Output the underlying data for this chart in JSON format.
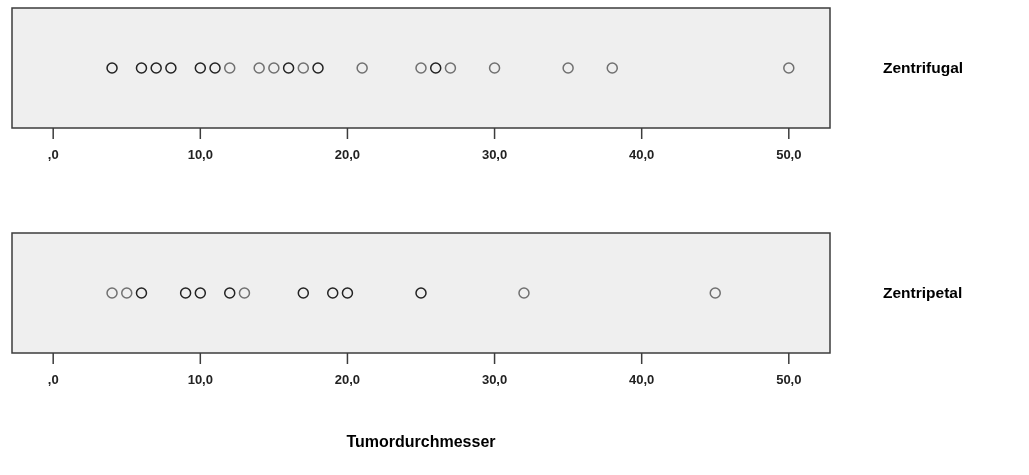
{
  "chart_data": [
    {
      "type": "scatter",
      "orientation": "horizontal",
      "marker": "circle",
      "categories": [
        "Zentrifugal"
      ],
      "series": [
        {
          "color": "#222222",
          "values": [
            4
          ]
        },
        {
          "color": "#222222",
          "values": [
            6
          ]
        },
        {
          "color": "#222222",
          "values": [
            7
          ]
        },
        {
          "color": "#222222",
          "values": [
            8
          ]
        },
        {
          "color": "#222222",
          "values": [
            10
          ]
        },
        {
          "color": "#222222",
          "values": [
            11
          ]
        },
        {
          "color": "#707070",
          "values": [
            12
          ]
        },
        {
          "color": "#707070",
          "values": [
            14
          ]
        },
        {
          "color": "#707070",
          "values": [
            15
          ]
        },
        {
          "color": "#222222",
          "values": [
            16
          ]
        },
        {
          "color": "#707070",
          "values": [
            17
          ]
        },
        {
          "color": "#222222",
          "values": [
            18
          ]
        },
        {
          "color": "#707070",
          "values": [
            21
          ]
        },
        {
          "color": "#707070",
          "values": [
            25
          ]
        },
        {
          "color": "#222222",
          "values": [
            26
          ]
        },
        {
          "color": "#707070",
          "values": [
            27
          ]
        },
        {
          "color": "#707070",
          "values": [
            30
          ]
        },
        {
          "color": "#707070",
          "values": [
            35
          ]
        },
        {
          "color": "#707070",
          "values": [
            38
          ]
        },
        {
          "color": "#707070",
          "values": [
            50
          ]
        }
      ],
      "xlim": [
        -2.8,
        52.8
      ],
      "xticks": [
        {
          "value": 0,
          "label": ",0"
        },
        {
          "value": 10,
          "label": "10,0"
        },
        {
          "value": 20,
          "label": "20,0"
        },
        {
          "value": 30,
          "label": "30,0"
        },
        {
          "value": 40,
          "label": "40,0"
        },
        {
          "value": 50,
          "label": "50,0"
        }
      ]
    },
    {
      "type": "scatter",
      "orientation": "horizontal",
      "marker": "circle",
      "categories": [
        "Zentripetal"
      ],
      "series": [
        {
          "color": "#707070",
          "values": [
            4
          ]
        },
        {
          "color": "#707070",
          "values": [
            5
          ]
        },
        {
          "color": "#222222",
          "values": [
            6
          ]
        },
        {
          "color": "#222222",
          "values": [
            9
          ]
        },
        {
          "color": "#222222",
          "values": [
            10
          ]
        },
        {
          "color": "#222222",
          "values": [
            12
          ]
        },
        {
          "color": "#707070",
          "values": [
            13
          ]
        },
        {
          "color": "#222222",
          "values": [
            17
          ]
        },
        {
          "color": "#222222",
          "values": [
            19
          ]
        },
        {
          "color": "#222222",
          "values": [
            20
          ]
        },
        {
          "color": "#222222",
          "values": [
            25
          ]
        },
        {
          "color": "#707070",
          "values": [
            32
          ]
        },
        {
          "color": "#707070",
          "values": [
            45
          ]
        }
      ],
      "xlim": [
        -2.8,
        52.8
      ],
      "xticks": [
        {
          "value": 0,
          "label": ",0"
        },
        {
          "value": 10,
          "label": "10,0"
        },
        {
          "value": 20,
          "label": "20,0"
        },
        {
          "value": 30,
          "label": "30,0"
        },
        {
          "value": 40,
          "label": "40,0"
        },
        {
          "value": 50,
          "label": "50,0"
        }
      ],
      "xlabel": "Tumordurchmesser"
    }
  ]
}
